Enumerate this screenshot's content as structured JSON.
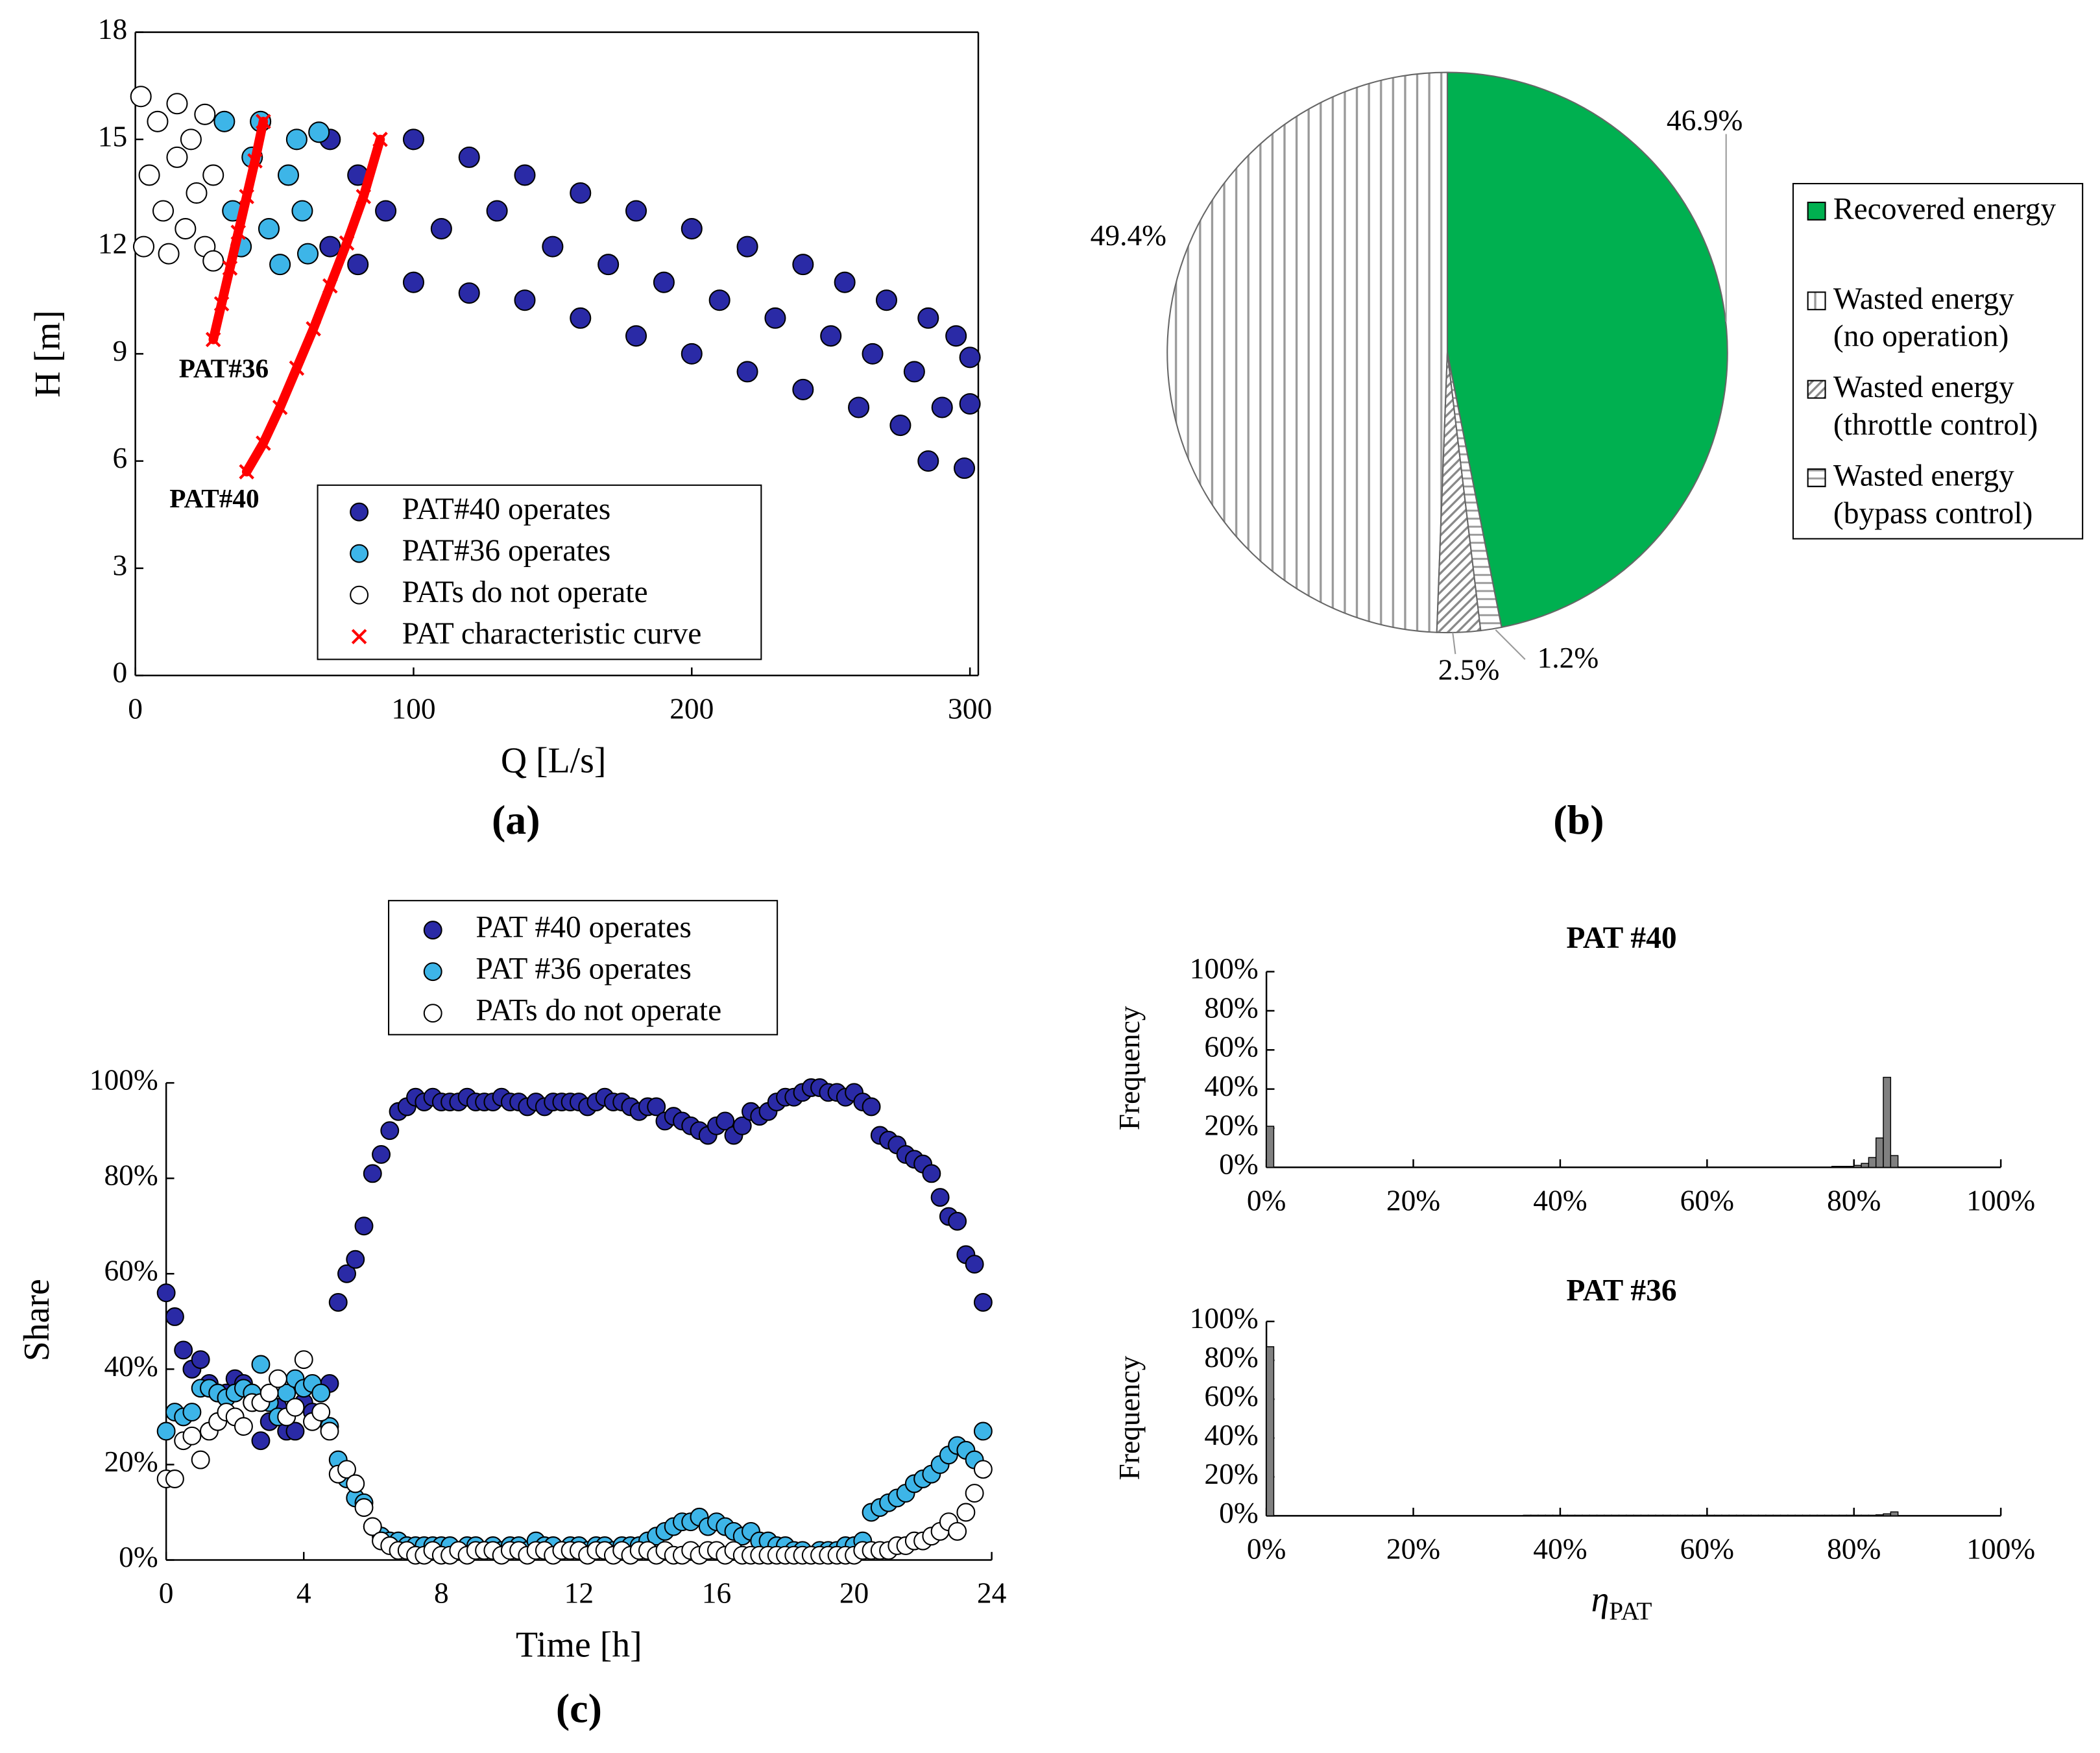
{
  "chart_data": [
    {
      "type": "scatter",
      "panel_label": "(a)",
      "x_label": "Q [L/s]",
      "y_label": "H [m]",
      "frame": true,
      "xlim": [
        0,
        303
      ],
      "xticks": [
        0,
        100,
        200,
        300
      ],
      "ylim": [
        0,
        18
      ],
      "yticks": [
        0,
        3,
        6,
        9,
        12,
        15,
        18
      ],
      "series": [
        {
          "name": "PAT#40 operates",
          "color": "#2a2aa6",
          "x": [
            70,
            70,
            80,
            80,
            90,
            100,
            100,
            110,
            120,
            120,
            130,
            140,
            140,
            150,
            160,
            160,
            170,
            180,
            180,
            190,
            200,
            200,
            210,
            220,
            220,
            230,
            240,
            240,
            250,
            255,
            260,
            265,
            270,
            275,
            280,
            285,
            285,
            290,
            295,
            298,
            300,
            300
          ],
          "y": [
            15,
            12,
            14,
            11.5,
            13,
            15,
            11,
            12.5,
            14.5,
            10.7,
            13,
            14,
            10.5,
            12,
            13.5,
            10,
            11.5,
            13,
            9.5,
            11,
            12.5,
            9,
            10.5,
            12,
            8.5,
            10,
            11.5,
            8,
            9.5,
            11,
            7.5,
            9,
            10.5,
            7,
            8.5,
            10,
            6,
            7.5,
            9.5,
            5.8,
            7.6,
            8.9
          ]
        },
        {
          "name": "PAT#36 operates",
          "color": "#3db5e8",
          "x": [
            32,
            35,
            38,
            42,
            45,
            48,
            52,
            55,
            58,
            60,
            62,
            66
          ],
          "y": [
            15.5,
            13,
            12,
            14.5,
            15.5,
            12.5,
            11.5,
            14,
            15,
            13,
            11.8,
            15.2
          ]
        },
        {
          "name": "PATs do not operate",
          "color": "#ffffff",
          "x": [
            2,
            3,
            5,
            8,
            10,
            12,
            15,
            15,
            18,
            20,
            22,
            25,
            25,
            28,
            28
          ],
          "y": [
            16.2,
            12,
            14,
            15.5,
            13,
            11.8,
            16,
            14.5,
            12.5,
            15,
            13.5,
            12,
            15.7,
            14,
            11.6
          ]
        }
      ],
      "curves": {
        "name": "PAT characteristic curve",
        "color": "#ff0000",
        "lines": [
          {
            "label": "PAT#36",
            "x": [
              28,
              31,
              34,
              37,
              40,
              43,
              46
            ],
            "y": [
              9.4,
              10.4,
              11.4,
              12.4,
              13.4,
              14.4,
              15.5
            ]
          },
          {
            "label": "PAT#40",
            "x": [
              40,
              46,
              52,
              58,
              64,
              70,
              76,
              82,
              88
            ],
            "y": [
              5.7,
              6.5,
              7.5,
              8.6,
              9.7,
              10.9,
              12.1,
              13.4,
              15
            ]
          }
        ]
      }
    },
    {
      "type": "pie",
      "panel_label": "(b)",
      "categories": [
        "Recovered energy",
        [
          "Wasted energy",
          "(no operation)"
        ],
        [
          "Wasted energy",
          "(throttle control)"
        ],
        [
          "Wasted energy",
          "(bypass control)"
        ]
      ],
      "values": [
        46.9,
        49.4,
        2.5,
        1.2
      ],
      "value_labels": [
        "46.9%",
        "49.4%",
        "2.5%",
        "1.2%"
      ],
      "fills": [
        "#00b050",
        "vertical",
        "diagonal",
        "horizontal"
      ]
    },
    {
      "type": "scatter",
      "panel_label": "(c)",
      "x_label": "Time [h]",
      "y_label": "Share",
      "xlim": [
        0,
        24
      ],
      "xticks": [
        0,
        4,
        8,
        12,
        16,
        20,
        24
      ],
      "ylim": [
        0,
        100
      ],
      "yticks": [
        {
          "value": 0,
          "label": "0%"
        },
        {
          "value": 20,
          "label": "20%"
        },
        {
          "value": 40,
          "label": "40%"
        },
        {
          "value": 60,
          "label": "60%"
        },
        {
          "value": 80,
          "label": "80%"
        },
        {
          "value": 100,
          "label": "100%"
        }
      ],
      "x": [
        0,
        0.25,
        0.5,
        0.75,
        1,
        1.25,
        1.5,
        1.75,
        2,
        2.25,
        2.5,
        2.75,
        3,
        3.25,
        3.5,
        3.75,
        4,
        4.25,
        4.5,
        4.75,
        5,
        5.25,
        5.5,
        5.75,
        6,
        6.25,
        6.5,
        6.75,
        7,
        7.25,
        7.5,
        7.75,
        8,
        8.25,
        8.5,
        8.75,
        9,
        9.25,
        9.5,
        9.75,
        10,
        10.25,
        10.5,
        10.75,
        11,
        11.25,
        11.5,
        11.75,
        12,
        12.25,
        12.5,
        12.75,
        13,
        13.25,
        13.5,
        13.75,
        14,
        14.25,
        14.5,
        14.75,
        15,
        15.25,
        15.5,
        15.75,
        16,
        16.25,
        16.5,
        16.75,
        17,
        17.25,
        17.5,
        17.75,
        18,
        18.25,
        18.5,
        18.75,
        19,
        19.25,
        19.5,
        19.75,
        20,
        20.25,
        20.5,
        20.75,
        21,
        21.25,
        21.5,
        21.75,
        22,
        22.25,
        22.5,
        22.75,
        23,
        23.25,
        23.5,
        23.75
      ],
      "series": [
        {
          "name": "PAT #40 operates",
          "color": "#2a2aa6",
          "values": [
            56,
            51,
            44,
            40,
            42,
            37,
            35,
            35,
            38,
            37,
            33,
            25,
            29,
            32,
            27,
            27,
            33,
            31,
            35,
            37,
            54,
            60,
            63,
            70,
            81,
            85,
            90,
            94,
            95,
            97,
            96,
            97,
            96,
            96,
            96,
            97,
            96,
            96,
            96,
            97,
            96,
            96,
            95,
            96,
            95,
            96,
            96,
            96,
            96,
            95,
            96,
            97,
            96,
            96,
            95,
            94,
            95,
            95,
            92,
            93,
            92,
            91,
            90,
            89,
            91,
            92,
            89,
            91,
            94,
            93,
            94,
            96,
            97,
            97,
            98,
            99,
            99,
            98,
            98,
            97,
            98,
            96,
            95,
            89,
            88,
            87,
            85,
            84,
            83,
            81,
            76,
            72,
            71,
            64,
            62,
            54
          ]
        },
        {
          "name": "PAT #36 operates",
          "color": "#3db5e8",
          "values": [
            27,
            31,
            30,
            31,
            36,
            36,
            35,
            34,
            35,
            36,
            35,
            41,
            33,
            30,
            35,
            38,
            36,
            37,
            35,
            28,
            21,
            17,
            13,
            12,
            7,
            5,
            4,
            4,
            3,
            3,
            3,
            3,
            3,
            3,
            2,
            3,
            3,
            2,
            3,
            2,
            3,
            3,
            2,
            4,
            3,
            3,
            2,
            3,
            3,
            2,
            3,
            3,
            2,
            3,
            3,
            3,
            4,
            5,
            6,
            7,
            8,
            8,
            9,
            7,
            8,
            7,
            6,
            5,
            6,
            4,
            4,
            3,
            3,
            2,
            2,
            1,
            2,
            2,
            2,
            3,
            3,
            4,
            10,
            11,
            12,
            13,
            14,
            16,
            17,
            18,
            20,
            22,
            24,
            23,
            21,
            27
          ]
        },
        {
          "name": "PATs do not operate",
          "color": "#ffffff",
          "values": [
            17,
            17,
            25,
            26,
            21,
            27,
            29,
            31,
            30,
            28,
            33,
            33,
            35,
            38,
            30,
            32,
            42,
            29,
            31,
            27,
            18,
            19,
            16,
            11,
            7,
            4,
            3,
            2,
            2,
            1,
            1,
            2,
            1,
            1,
            2,
            1,
            2,
            2,
            2,
            1,
            2,
            2,
            1,
            2,
            2,
            1,
            2,
            2,
            2,
            1,
            2,
            2,
            1,
            2,
            1,
            2,
            2,
            1,
            2,
            1,
            1,
            2,
            1,
            2,
            2,
            1,
            2,
            1,
            1,
            1,
            1,
            1,
            1,
            1,
            1,
            1,
            1,
            1,
            1,
            1,
            1,
            2,
            2,
            2,
            2,
            3,
            3,
            4,
            4,
            5,
            6,
            8,
            6,
            10,
            14,
            19
          ]
        }
      ]
    },
    {
      "type": "histogram",
      "title": "PAT #40",
      "y_label": "Frequency",
      "color": "#808080",
      "xlim": [
        0,
        100
      ],
      "xticks": [
        {
          "value": 0,
          "label": "0%"
        },
        {
          "value": 20,
          "label": "20%"
        },
        {
          "value": 40,
          "label": "40%"
        },
        {
          "value": 60,
          "label": "60%"
        },
        {
          "value": 80,
          "label": "80%"
        },
        {
          "value": 100,
          "label": "100%"
        }
      ],
      "ylim": [
        0,
        100
      ],
      "yticks": [
        {
          "value": 0,
          "label": "0%"
        },
        {
          "value": 20,
          "label": "20%"
        },
        {
          "value": 40,
          "label": "40%"
        },
        {
          "value": 60,
          "label": "60%"
        },
        {
          "value": 80,
          "label": "80%"
        },
        {
          "value": 100,
          "label": "100%"
        }
      ],
      "bins": [
        0,
        1,
        2,
        3,
        4,
        5,
        6,
        7,
        8,
        9,
        10,
        11,
        12,
        13,
        14,
        15,
        16,
        17,
        18,
        19,
        20,
        21,
        22,
        23,
        24,
        25,
        26,
        27,
        28,
        29,
        30,
        31,
        32,
        33,
        34,
        35,
        36,
        37,
        38,
        39,
        40,
        41,
        42,
        43,
        44,
        45,
        46,
        47,
        48,
        49,
        50,
        51,
        52,
        53,
        54,
        55,
        56,
        57,
        58,
        59,
        60,
        61,
        62,
        63,
        64,
        65,
        66,
        67,
        68,
        69,
        70,
        71,
        72,
        73,
        74,
        75,
        76,
        77,
        78,
        79,
        80,
        81,
        82,
        83,
        84,
        85,
        86,
        87,
        88,
        89,
        90,
        91,
        92,
        93,
        94,
        95,
        96,
        97,
        98,
        99,
        100
      ],
      "counts": [
        21,
        0,
        0,
        0,
        0,
        0,
        0,
        0,
        0,
        0,
        0,
        0,
        0,
        0,
        0,
        0,
        0,
        0,
        0,
        0,
        0,
        0,
        0,
        0,
        0,
        0,
        0,
        0,
        0,
        0,
        0,
        0,
        0,
        0,
        0,
        0,
        0,
        0,
        0,
        0,
        0,
        0,
        0,
        0,
        0,
        0,
        0,
        0,
        0,
        0,
        0,
        0,
        0,
        0,
        0,
        0,
        0,
        0,
        0,
        0,
        0,
        0,
        0,
        0,
        0,
        0,
        0,
        0,
        0,
        0,
        0,
        0,
        0,
        0,
        0,
        0,
        0,
        0.5,
        0.5,
        0.5,
        1,
        2,
        5,
        15,
        46,
        6,
        0,
        0,
        0,
        0,
        0,
        0,
        0,
        0,
        0,
        0,
        0,
        0,
        0,
        0
      ]
    },
    {
      "type": "histogram",
      "title": "PAT #36",
      "y_label": "Frequency",
      "x_label": {
        "main": "η",
        "sub": "PAT"
      },
      "color": "#808080",
      "xlim": [
        0,
        100
      ],
      "xticks": [
        {
          "value": 0,
          "label": "0%"
        },
        {
          "value": 20,
          "label": "20%"
        },
        {
          "value": 40,
          "label": "40%"
        },
        {
          "value": 60,
          "label": "60%"
        },
        {
          "value": 80,
          "label": "80%"
        },
        {
          "value": 100,
          "label": "100%"
        }
      ],
      "ylim": [
        0,
        100
      ],
      "yticks": [
        {
          "value": 0,
          "label": "0%"
        },
        {
          "value": 20,
          "label": "20%"
        },
        {
          "value": 40,
          "label": "40%"
        },
        {
          "value": 60,
          "label": "60%"
        },
        {
          "value": 80,
          "label": "80%"
        },
        {
          "value": 100,
          "label": "100%"
        }
      ],
      "bins": [
        0,
        1,
        2,
        3,
        4,
        5,
        6,
        7,
        8,
        9,
        10,
        11,
        12,
        13,
        14,
        15,
        16,
        17,
        18,
        19,
        20,
        21,
        22,
        23,
        24,
        25,
        26,
        27,
        28,
        29,
        30,
        31,
        32,
        33,
        34,
        35,
        36,
        37,
        38,
        39,
        40,
        41,
        42,
        43,
        44,
        45,
        46,
        47,
        48,
        49,
        50,
        51,
        52,
        53,
        54,
        55,
        56,
        57,
        58,
        59,
        60,
        61,
        62,
        63,
        64,
        65,
        66,
        67,
        68,
        69,
        70,
        71,
        72,
        73,
        74,
        75,
        76,
        77,
        78,
        79,
        80,
        81,
        82,
        83,
        84,
        85,
        86,
        87,
        88,
        89,
        90,
        91,
        92,
        93,
        94,
        95,
        96,
        97,
        98,
        99,
        100
      ],
      "counts": [
        87,
        0,
        0,
        0,
        0,
        0,
        0,
        0,
        0,
        0,
        0,
        0,
        0,
        0,
        0,
        0,
        0,
        0,
        0,
        0,
        0,
        0,
        0,
        0,
        0,
        0,
        0,
        0,
        0,
        0,
        0,
        0,
        0,
        0,
        0,
        0.3,
        0.3,
        0.3,
        0.3,
        0.3,
        0.3,
        0.3,
        0.3,
        0.3,
        0.3,
        0.3,
        0.3,
        0.3,
        0.3,
        0.3,
        0.3,
        0.3,
        0.3,
        0.3,
        0.3,
        0.3,
        0.3,
        0.3,
        0.3,
        0.3,
        0.3,
        0.3,
        0.3,
        0.3,
        0.3,
        0.3,
        0.3,
        0.3,
        0.3,
        0.3,
        0.3,
        0.3,
        0.3,
        0.3,
        0.3,
        0.3,
        0.3,
        0.3,
        0.3,
        0.3,
        0.3,
        0.3,
        0.3,
        0.5,
        1,
        2,
        0,
        0,
        0,
        0,
        0,
        0,
        0,
        0,
        0,
        0,
        0,
        0,
        0,
        0
      ]
    }
  ]
}
